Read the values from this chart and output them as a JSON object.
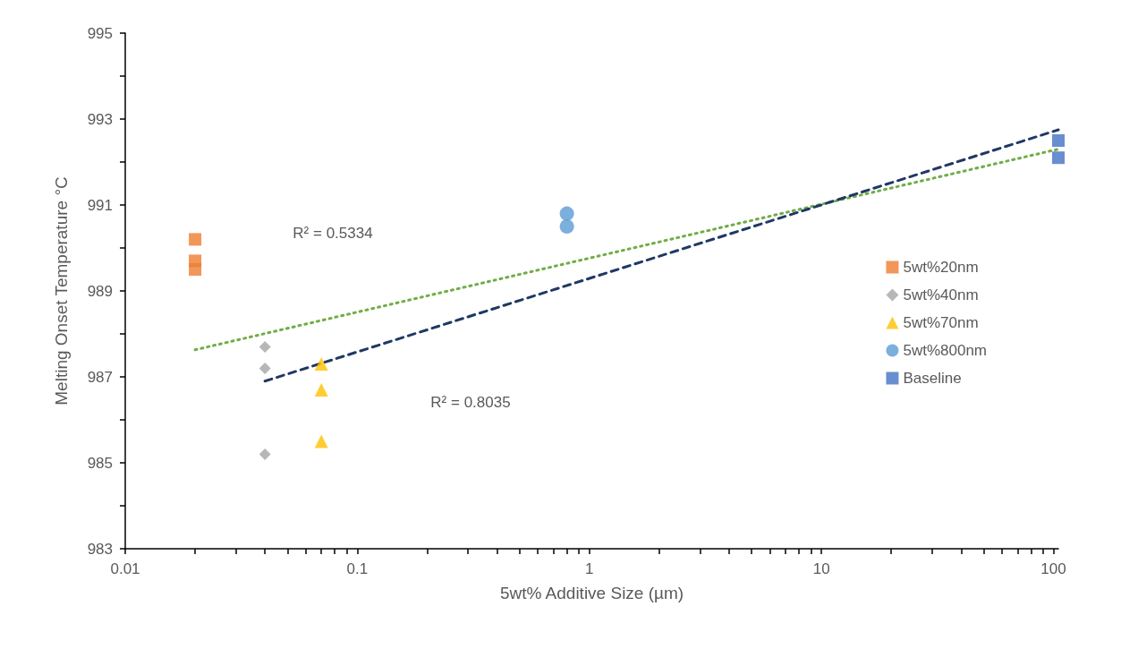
{
  "chart_data": {
    "type": "scatter",
    "xlabel": "5wt% Additive Size (µm)",
    "ylabel": "Melting Onset Temperature °C",
    "log": "x",
    "grid": false,
    "legend": "right",
    "xlim": [
      0.01,
      105
    ],
    "xticks": [
      0.01,
      {
        "value": 0.02,
        "label": null
      },
      {
        "value": 0.03,
        "label": null
      },
      {
        "value": 0.04,
        "label": null
      },
      {
        "value": 0.05,
        "label": null
      },
      {
        "value": 0.06,
        "label": null
      },
      {
        "value": 0.07,
        "label": null
      },
      {
        "value": 0.08,
        "label": null
      },
      {
        "value": 0.09,
        "label": null
      },
      0.1,
      {
        "value": 0.2,
        "label": null
      },
      {
        "value": 0.3,
        "label": null
      },
      {
        "value": 0.4,
        "label": null
      },
      {
        "value": 0.5,
        "label": null
      },
      {
        "value": 0.6,
        "label": null
      },
      {
        "value": 0.7,
        "label": null
      },
      {
        "value": 0.8,
        "label": null
      },
      {
        "value": 0.9,
        "label": null
      },
      1,
      {
        "value": 2,
        "label": null
      },
      {
        "value": 3,
        "label": null
      },
      {
        "value": 4,
        "label": null
      },
      {
        "value": 5,
        "label": null
      },
      {
        "value": 6,
        "label": null
      },
      {
        "value": 7,
        "label": null
      },
      {
        "value": 8,
        "label": null
      },
      {
        "value": 9,
        "label": null
      },
      10,
      {
        "value": 20,
        "label": null
      },
      {
        "value": 30,
        "label": null
      },
      {
        "value": 40,
        "label": null
      },
      {
        "value": 50,
        "label": null
      },
      {
        "value": 60,
        "label": null
      },
      {
        "value": 70,
        "label": null
      },
      {
        "value": 80,
        "label": null
      },
      {
        "value": 90,
        "label": null
      },
      100
    ],
    "ylim": [
      983,
      995
    ],
    "yticks": [
      983,
      {
        "value": 984,
        "label": null
      },
      985,
      {
        "value": 986,
        "label": null
      },
      987,
      {
        "value": 988,
        "label": null
      },
      989,
      {
        "value": 990,
        "label": null
      },
      991,
      {
        "value": 992,
        "label": null
      },
      993,
      {
        "value": 994,
        "label": null
      },
      995
    ],
    "series": [
      {
        "name": "5wt%20nm",
        "color": "#ed7d31",
        "marker": "square",
        "x": [
          0.02,
          0.02,
          0.02
        ],
        "values": [
          990.2,
          989.7,
          989.5
        ]
      },
      {
        "name": "5wt%40nm",
        "color": "#a5a5a5",
        "marker": "diamond",
        "x": [
          0.04,
          0.04,
          0.04
        ],
        "values": [
          987.7,
          987.2,
          985.2
        ]
      },
      {
        "name": "5wt%70nm",
        "color": "#ffc000",
        "marker": "triangle",
        "x": [
          0.07,
          0.07,
          0.07
        ],
        "values": [
          987.3,
          986.7,
          985.5
        ]
      },
      {
        "name": "5wt%800nm",
        "color": "#5b9bd5",
        "marker": "circle",
        "x": [
          0.8,
          0.8
        ],
        "values": [
          990.8,
          990.5
        ]
      },
      {
        "name": "Baseline",
        "color": "#4472c4",
        "marker": "square",
        "x": [
          105,
          105
        ],
        "values": [
          992.5,
          992.1
        ]
      },
      {
        "type": "line",
        "color": "#70ad47",
        "line_style": "dotted",
        "marker": "none",
        "x": [
          0.02,
          105
        ],
        "values": [
          987.63,
          992.3
        ]
      },
      {
        "type": "line",
        "color": "#203864",
        "line_style": "dashed",
        "marker": "none",
        "x": [
          0.04,
          105
        ],
        "values": [
          986.9,
          992.75
        ]
      }
    ],
    "annotations": [
      "R² = 0.5334",
      "R² = 0.8035"
    ]
  }
}
